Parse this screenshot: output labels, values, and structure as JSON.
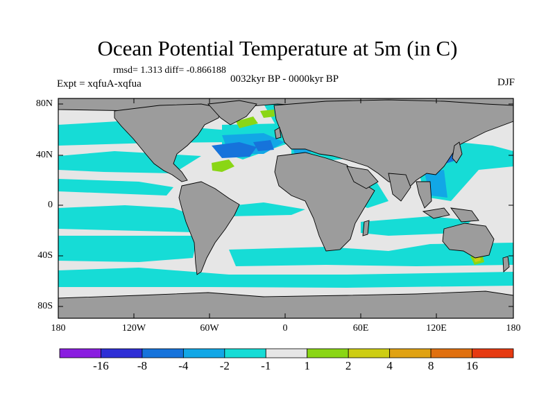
{
  "title": "Ocean Potential Temperature at 5m (in C)",
  "stats": "rmsd= 1.313 diff= -0.866188",
  "experiment": "Expt = xqfuA-xqfua",
  "period": "0032kyr BP - 0000kyr BP",
  "season": "DJF",
  "map": {
    "land_color": "#9c9c9c",
    "ocean_base_color": "#e6e6e6",
    "lat_labels": [
      "80N",
      "40N",
      "0",
      "40S",
      "80S"
    ],
    "lon_labels": [
      "180",
      "120W",
      "60W",
      "0",
      "60E",
      "120E",
      "180"
    ]
  },
  "colorbar": {
    "colors": [
      "#8a1de0",
      "#2e2ed6",
      "#1673db",
      "#12a7e6",
      "#16dcd6",
      "#e6e6e6",
      "#8ad615",
      "#cdcd13",
      "#e0a213",
      "#e0700f",
      "#e63a12"
    ],
    "labels": [
      "-16",
      "-8",
      "-4",
      "-2",
      "-1",
      "1",
      "2",
      "4",
      "8",
      "16"
    ]
  }
}
